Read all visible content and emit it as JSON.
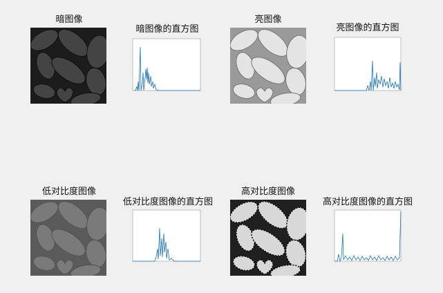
{
  "panels": [
    {
      "image_title": "暗图像",
      "histogram_title": "暗图像的直方图"
    },
    {
      "image_title": "亮图像",
      "histogram_title": "亮图像的直方图"
    },
    {
      "image_title": "低对比度图像",
      "histogram_title": "低对比度图像的直方图"
    },
    {
      "image_title": "高对比度图像",
      "histogram_title": "高对比度图像的直方图"
    }
  ]
}
